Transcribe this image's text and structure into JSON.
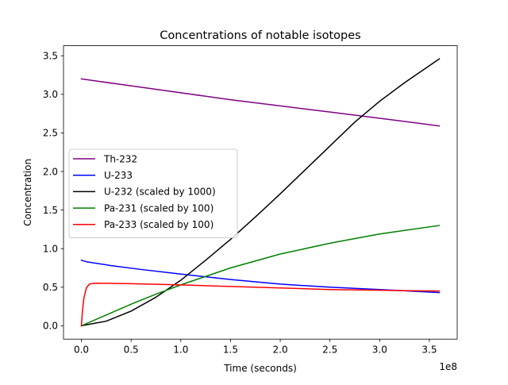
{
  "chart_data": {
    "type": "line",
    "title": "Concentrations of notable isotopes",
    "xlabel": "Time (seconds)",
    "ylabel": "Concentration",
    "x_offset_label": "1e8",
    "xlim": [
      -0.18,
      3.78
    ],
    "ylim": [
      -0.173,
      3.63
    ],
    "x_ticks": [
      0.0,
      0.5,
      1.0,
      1.5,
      2.0,
      2.5,
      3.0,
      3.5
    ],
    "x_tick_labels": [
      "0.0",
      "0.5",
      "1.0",
      "1.5",
      "2.0",
      "2.5",
      "3.0",
      "3.5"
    ],
    "y_ticks": [
      0.0,
      0.5,
      1.0,
      1.5,
      2.0,
      2.5,
      3.0,
      3.5
    ],
    "y_tick_labels": [
      "0.0",
      "0.5",
      "1.0",
      "1.5",
      "2.0",
      "2.5",
      "3.0",
      "3.5"
    ],
    "legend_position": "center-left",
    "series": [
      {
        "name": "Th-232",
        "color": "#800080",
        "x": [
          0,
          0.5,
          1.0,
          1.5,
          2.0,
          2.5,
          3.0,
          3.6
        ],
        "y": [
          3.2,
          3.11,
          3.02,
          2.93,
          2.85,
          2.77,
          2.69,
          2.59
        ]
      },
      {
        "name": "U-233",
        "color": "#0000ff",
        "x": [
          0,
          0.05,
          0.3,
          0.6,
          1.0,
          1.5,
          2.0,
          2.5,
          3.0,
          3.6
        ],
        "y": [
          0.85,
          0.83,
          0.78,
          0.73,
          0.67,
          0.6,
          0.54,
          0.5,
          0.47,
          0.43
        ]
      },
      {
        "name": "U-232 (scaled by 1000)",
        "color": "#000000",
        "x": [
          0,
          0.25,
          0.5,
          0.75,
          1.0,
          1.25,
          1.5,
          1.75,
          2.0,
          2.25,
          2.5,
          2.75,
          3.0,
          3.25,
          3.6
        ],
        "y": [
          0.0,
          0.06,
          0.19,
          0.37,
          0.59,
          0.85,
          1.12,
          1.41,
          1.71,
          2.02,
          2.33,
          2.64,
          2.91,
          3.15,
          3.46
        ]
      },
      {
        "name": "Pa-231 (scaled by 100)",
        "color": "#008000",
        "x": [
          0,
          0.25,
          0.5,
          0.75,
          1.0,
          1.5,
          2.0,
          2.5,
          3.0,
          3.6
        ],
        "y": [
          0.0,
          0.14,
          0.28,
          0.41,
          0.53,
          0.75,
          0.93,
          1.07,
          1.19,
          1.3
        ]
      },
      {
        "name": "Pa-233 (scaled by 100)",
        "color": "#ff0000",
        "x": [
          0,
          0.01,
          0.025,
          0.05,
          0.08,
          0.12,
          0.16,
          0.25,
          0.5,
          1.0,
          1.5,
          2.0,
          2.5,
          3.0,
          3.6
        ],
        "y": [
          0.0,
          0.18,
          0.36,
          0.49,
          0.54,
          0.55,
          0.552,
          0.55,
          0.545,
          0.53,
          0.51,
          0.49,
          0.47,
          0.46,
          0.45
        ]
      }
    ]
  }
}
